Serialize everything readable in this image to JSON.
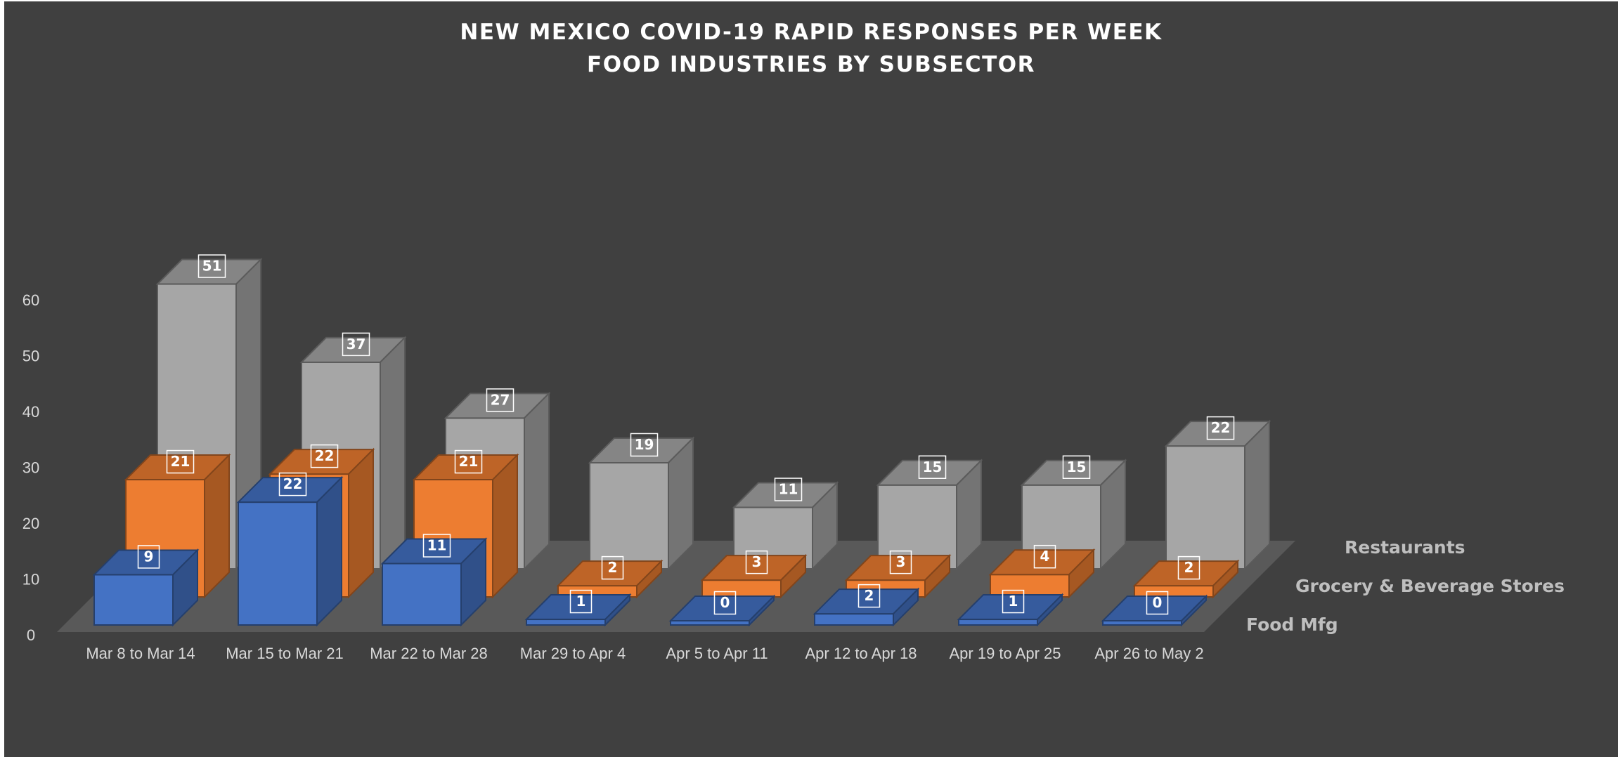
{
  "chart_data": {
    "type": "bar",
    "variant": "3d-column",
    "title": "NEW MEXICO COVID-19 RAPID RESPONSES PER WEEK",
    "subtitle": "FOOD INDUSTRIES BY SUBSECTOR",
    "categories": [
      "Mar 8 to Mar 14",
      "Mar 15 to Mar 21",
      "Mar 22 to Mar 28",
      "Mar 29 to Apr 4",
      "Apr 5 to Apr 11",
      "Apr 12 to Apr 18",
      "Apr 19 to Apr 25",
      "Apr 26 to May 2"
    ],
    "series": [
      {
        "name": "Restaurants",
        "values": [
          51,
          37,
          27,
          19,
          11,
          15,
          15,
          22
        ],
        "color": "#a6a6a6"
      },
      {
        "name": "Grocery & Beverage Stores",
        "values": [
          21,
          22,
          21,
          2,
          3,
          3,
          4,
          2
        ],
        "color": "#ed7d31"
      },
      {
        "name": "Food Mfg",
        "values": [
          9,
          22,
          11,
          1,
          0,
          2,
          1,
          0
        ],
        "color": "#4472c4"
      }
    ],
    "yticks": [
      0,
      10,
      20,
      30,
      40,
      50,
      60
    ],
    "ylim": [
      0,
      60
    ],
    "xlabel": "",
    "ylabel": "",
    "grid": false,
    "legend": "none",
    "background": "#404040"
  }
}
